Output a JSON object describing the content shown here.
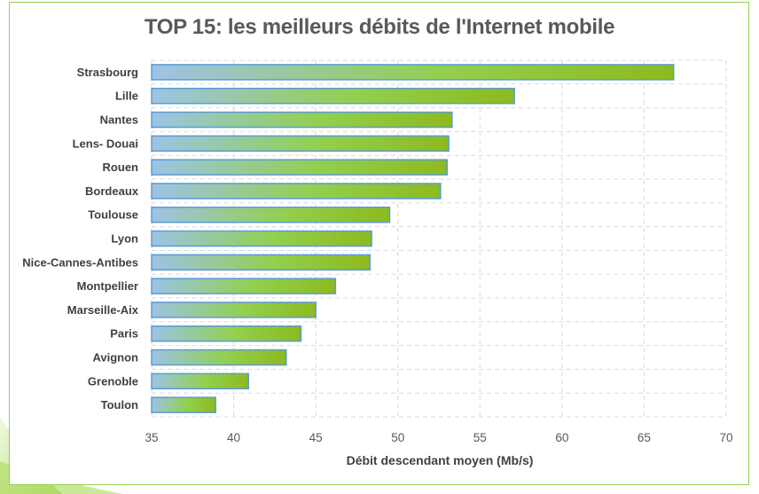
{
  "colors": {
    "frame_border": "#92D050",
    "bar_start": "#9DC3E6",
    "bar_mid": "#92D050",
    "bar_end": "#8DBA1E",
    "bar_border": "#5B9BD5",
    "grid": "#D9D9D9",
    "title": "#595959"
  },
  "chart_data": {
    "type": "bar",
    "orientation": "horizontal",
    "title": "TOP 15: les meilleurs débits de l'Internet mobile",
    "xlabel": "Débit descendant moyen (Mb/s)",
    "ylabel": "",
    "categories": [
      "Strasbourg",
      "Lille",
      "Nantes",
      "Lens- Douai",
      "Rouen",
      "Bordeaux",
      "Toulouse",
      "Lyon",
      "Nice-Cannes-Antibes",
      "Montpellier",
      "Marseille-Aix",
      "Paris",
      "Avignon",
      "Grenoble",
      "Toulon"
    ],
    "values": [
      66.8,
      57.1,
      53.3,
      53.1,
      53.0,
      52.6,
      49.5,
      48.4,
      48.3,
      46.2,
      45.0,
      44.1,
      43.2,
      40.9,
      38.9
    ],
    "xlim": [
      35,
      70
    ],
    "xticks": [
      35,
      40,
      45,
      50,
      55,
      60,
      65,
      70
    ],
    "xtick_labels": [
      "35",
      "40",
      "45",
      "50",
      "55",
      "60",
      "65",
      "70"
    ],
    "grid": true,
    "grid_style": "dashed",
    "legend": "none"
  }
}
